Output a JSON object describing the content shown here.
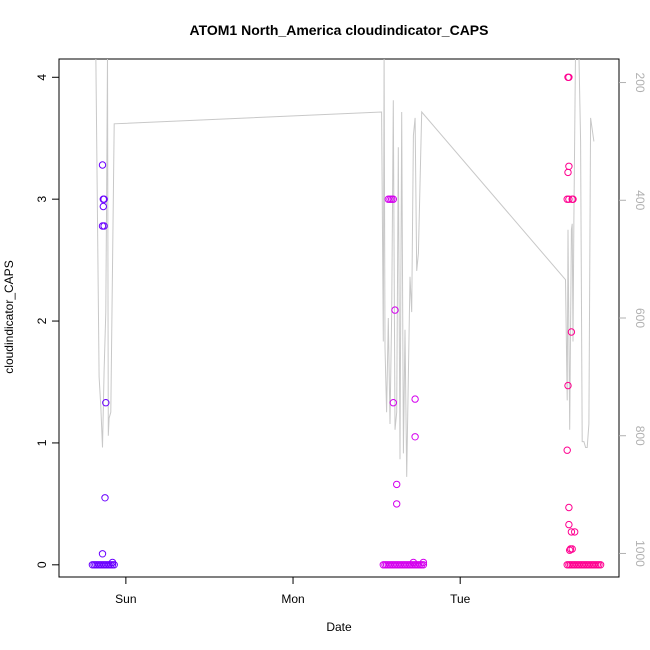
{
  "chart_data": {
    "type": "scatter",
    "title": "ATOM1 North_America cloudindicator_CAPS",
    "xlabel": "Date",
    "ylabel": "cloudindicator_CAPS",
    "x_tick_labels": [
      "Sun",
      "Mon",
      "Tue"
    ],
    "x_ticks_day": [
      1,
      2,
      3
    ],
    "xlim_day": [
      0.6,
      3.95
    ],
    "ylim": [
      -0.1,
      4.15
    ],
    "y_ticks": [
      0,
      1,
      2,
      3,
      4
    ],
    "right_axis": {
      "ticks": [
        200,
        400,
        600,
        800,
        1000
      ],
      "ylim": [
        1040,
        160
      ],
      "reversed": true,
      "color": "#b0b0b0"
    },
    "point_series": [
      {
        "color": "#6a00ff",
        "points": [
          [
            0.8,
            0
          ],
          [
            0.81,
            0
          ],
          [
            0.82,
            0
          ],
          [
            0.83,
            0
          ],
          [
            0.84,
            0
          ],
          [
            0.85,
            0
          ],
          [
            0.86,
            0
          ],
          [
            0.87,
            0
          ],
          [
            0.88,
            0
          ],
          [
            0.89,
            0
          ],
          [
            0.9,
            0
          ],
          [
            0.91,
            0
          ],
          [
            0.92,
            0
          ],
          [
            0.93,
            0
          ],
          [
            0.86,
            3.28
          ],
          [
            0.865,
            3.0
          ],
          [
            0.87,
            3.0
          ],
          [
            0.865,
            2.94
          ],
          [
            0.86,
            2.78
          ],
          [
            0.87,
            2.78
          ],
          [
            0.88,
            1.33
          ],
          [
            0.875,
            0.55
          ],
          [
            0.86,
            0.09
          ],
          [
            0.92,
            0.02
          ]
        ]
      },
      {
        "color": "#d400ee",
        "points": [
          [
            2.54,
            0
          ],
          [
            2.55,
            0
          ],
          [
            2.56,
            0
          ],
          [
            2.57,
            0
          ],
          [
            2.58,
            0
          ],
          [
            2.59,
            0
          ],
          [
            2.6,
            0
          ],
          [
            2.61,
            0
          ],
          [
            2.62,
            0
          ],
          [
            2.63,
            0
          ],
          [
            2.64,
            0
          ],
          [
            2.65,
            0
          ],
          [
            2.66,
            0
          ],
          [
            2.67,
            0
          ],
          [
            2.68,
            0
          ],
          [
            2.69,
            0
          ],
          [
            2.7,
            0
          ],
          [
            2.71,
            0
          ],
          [
            2.72,
            0
          ],
          [
            2.73,
            0
          ],
          [
            2.74,
            0
          ],
          [
            2.75,
            0
          ],
          [
            2.76,
            0
          ],
          [
            2.77,
            0
          ],
          [
            2.78,
            0
          ],
          [
            2.57,
            3.0
          ],
          [
            2.58,
            3.0
          ],
          [
            2.59,
            3.0
          ],
          [
            2.6,
            3.0
          ],
          [
            2.61,
            2.09
          ],
          [
            2.6,
            1.33
          ],
          [
            2.73,
            1.36
          ],
          [
            2.73,
            1.05
          ],
          [
            2.62,
            0.66
          ],
          [
            2.62,
            0.5
          ],
          [
            2.72,
            0.02
          ],
          [
            2.78,
            0.02
          ]
        ]
      },
      {
        "color": "#ff0090",
        "points": [
          [
            3.64,
            0
          ],
          [
            3.65,
            0
          ],
          [
            3.66,
            0
          ],
          [
            3.67,
            0
          ],
          [
            3.68,
            0
          ],
          [
            3.69,
            0
          ],
          [
            3.7,
            0
          ],
          [
            3.71,
            0
          ],
          [
            3.72,
            0
          ],
          [
            3.73,
            0
          ],
          [
            3.74,
            0
          ],
          [
            3.75,
            0
          ],
          [
            3.76,
            0
          ],
          [
            3.77,
            0
          ],
          [
            3.78,
            0
          ],
          [
            3.79,
            0
          ],
          [
            3.8,
            0
          ],
          [
            3.81,
            0
          ],
          [
            3.82,
            0
          ],
          [
            3.83,
            0
          ],
          [
            3.84,
            0
          ],
          [
            3.645,
            4.0
          ],
          [
            3.65,
            4.0
          ],
          [
            3.65,
            3.27
          ],
          [
            3.645,
            3.22
          ],
          [
            3.64,
            3.0
          ],
          [
            3.65,
            3.0
          ],
          [
            3.67,
            3.0
          ],
          [
            3.675,
            3.0
          ],
          [
            3.665,
            1.91
          ],
          [
            3.645,
            1.47
          ],
          [
            3.64,
            0.94
          ],
          [
            3.65,
            0.47
          ],
          [
            3.65,
            0.33
          ],
          [
            3.665,
            0.27
          ],
          [
            3.685,
            0.27
          ],
          [
            3.66,
            0.13
          ],
          [
            3.67,
            0.13
          ],
          [
            3.655,
            0.12
          ]
        ]
      }
    ],
    "line_series": {
      "color": "#c8c8c8",
      "axis": "right",
      "points": [
        [
          0.82,
          150
        ],
        [
          0.84,
          700
        ],
        [
          0.85,
          750
        ],
        [
          0.86,
          820
        ],
        [
          0.87,
          690
        ],
        [
          0.88,
          590
        ],
        [
          0.885,
          400
        ],
        [
          0.89,
          150
        ],
        [
          0.895,
          800
        ],
        [
          0.9,
          770
        ],
        [
          0.91,
          760
        ],
        [
          0.93,
          270
        ],
        [
          2.53,
          250
        ],
        [
          2.54,
          640
        ],
        [
          2.545,
          150
        ],
        [
          2.55,
          650
        ],
        [
          2.56,
          760
        ],
        [
          2.57,
          600
        ],
        [
          2.58,
          780
        ],
        [
          2.59,
          590
        ],
        [
          2.6,
          230
        ],
        [
          2.61,
          790
        ],
        [
          2.62,
          760
        ],
        [
          2.63,
          310
        ],
        [
          2.64,
          840
        ],
        [
          2.65,
          250
        ],
        [
          2.66,
          830
        ],
        [
          2.67,
          620
        ],
        [
          2.68,
          870
        ],
        [
          2.7,
          530
        ],
        [
          2.71,
          590
        ],
        [
          2.72,
          290
        ],
        [
          2.73,
          260
        ],
        [
          2.74,
          520
        ],
        [
          2.75,
          490
        ],
        [
          2.77,
          250
        ],
        [
          3.63,
          535
        ],
        [
          3.64,
          740
        ],
        [
          3.645,
          450
        ],
        [
          3.655,
          790
        ],
        [
          3.665,
          450
        ],
        [
          3.67,
          440
        ],
        [
          3.675,
          640
        ],
        [
          3.68,
          430
        ],
        [
          3.69,
          150
        ],
        [
          3.71,
          150
        ],
        [
          3.72,
          300
        ],
        [
          3.73,
          810
        ],
        [
          3.74,
          810
        ],
        [
          3.75,
          820
        ],
        [
          3.76,
          820
        ],
        [
          3.77,
          780
        ],
        [
          3.78,
          260
        ],
        [
          3.8,
          300
        ]
      ]
    },
    "grid": false,
    "legend": "none"
  }
}
